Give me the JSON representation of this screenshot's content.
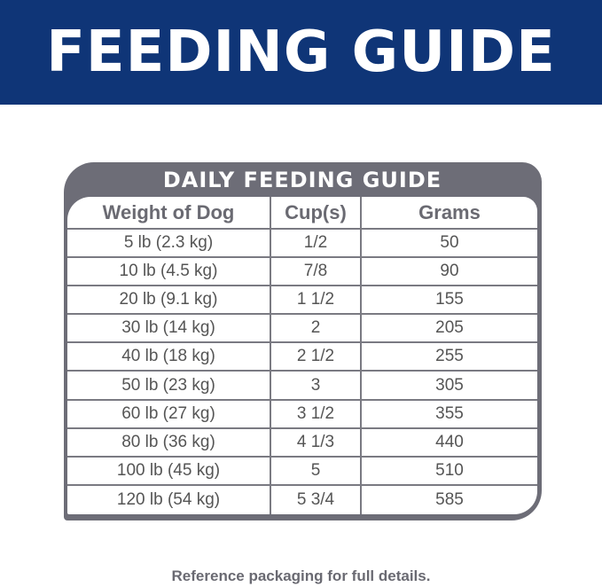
{
  "banner": {
    "title": "FEEDING GUIDE"
  },
  "table": {
    "title": "DAILY FEEDING GUIDE",
    "headers": [
      "Weight of Dog",
      "Cup(s)",
      "Grams"
    ],
    "rows": [
      [
        "5 lb (2.3 kg)",
        "1/2",
        "50"
      ],
      [
        "10 lb (4.5 kg)",
        "7/8",
        "90"
      ],
      [
        "20 lb (9.1 kg)",
        "1 1/2",
        "155"
      ],
      [
        "30 lb (14 kg)",
        "2",
        "205"
      ],
      [
        "40 lb (18 kg)",
        "2 1/2",
        "255"
      ],
      [
        "50 lb (23 kg)",
        "3",
        "305"
      ],
      [
        "60 lb (27 kg)",
        "3 1/2",
        "355"
      ],
      [
        "80 lb (36 kg)",
        "4 1/3",
        "440"
      ],
      [
        "100 lb (45 kg)",
        "5",
        "510"
      ],
      [
        "120 lb (54 kg)",
        "5 3/4",
        "585"
      ]
    ]
  },
  "footer": {
    "note": "Reference packaging for full details."
  },
  "colors": {
    "banner": "#0f3577",
    "frame": "#6d6d77",
    "text": "#555555"
  }
}
